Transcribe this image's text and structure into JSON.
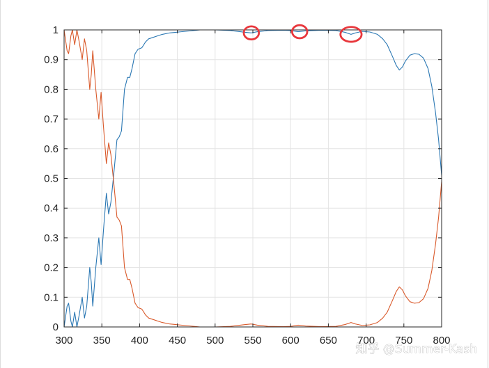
{
  "watermark": "知乎 @Summer-Kash",
  "colors": {
    "series_transmission": "#2a77b3",
    "series_reflection": "#d9592a",
    "marker": "#e8373c",
    "grid": "#e3e3e3",
    "axis": "#262626"
  },
  "chart_data": {
    "type": "line",
    "title": "",
    "xlabel": "",
    "ylabel": "",
    "xlim": [
      300,
      800
    ],
    "ylim": [
      0,
      1
    ],
    "grid": true,
    "legend": "none",
    "x_ticks": [
      "300",
      "350",
      "400",
      "450",
      "500",
      "550",
      "600",
      "650",
      "700",
      "750",
      "800"
    ],
    "y_ticks": [
      "0",
      "0.1",
      "0.2",
      "0.3",
      "0.4",
      "0.5",
      "0.6",
      "0.7",
      "0.8",
      "0.9",
      "1"
    ],
    "series": [
      {
        "color": "#2a77b3",
        "points": [
          [
            300,
            0.0
          ],
          [
            304,
            0.07
          ],
          [
            306,
            0.08
          ],
          [
            309,
            0.02
          ],
          [
            311,
            0.0
          ],
          [
            314,
            0.05
          ],
          [
            317,
            0.0
          ],
          [
            320,
            0.04
          ],
          [
            324,
            0.1
          ],
          [
            327,
            0.03
          ],
          [
            330,
            0.07
          ],
          [
            334,
            0.2
          ],
          [
            336,
            0.15
          ],
          [
            338,
            0.07
          ],
          [
            342,
            0.2
          ],
          [
            346,
            0.3
          ],
          [
            349,
            0.21
          ],
          [
            352,
            0.32
          ],
          [
            356,
            0.45
          ],
          [
            359,
            0.38
          ],
          [
            362,
            0.42
          ],
          [
            366,
            0.52
          ],
          [
            370,
            0.63
          ],
          [
            373,
            0.64
          ],
          [
            376,
            0.66
          ],
          [
            380,
            0.8
          ],
          [
            384,
            0.84
          ],
          [
            387,
            0.84
          ],
          [
            390,
            0.87
          ],
          [
            394,
            0.92
          ],
          [
            398,
            0.935
          ],
          [
            403,
            0.94
          ],
          [
            408,
            0.96
          ],
          [
            412,
            0.97
          ],
          [
            418,
            0.975
          ],
          [
            424,
            0.98
          ],
          [
            430,
            0.985
          ],
          [
            440,
            0.99
          ],
          [
            460,
            0.995
          ],
          [
            480,
            1.0
          ],
          [
            500,
            1.0
          ],
          [
            520,
            0.998
          ],
          [
            540,
            0.992
          ],
          [
            548,
            0.99
          ],
          [
            556,
            0.994
          ],
          [
            570,
            0.998
          ],
          [
            590,
            0.999
          ],
          [
            600,
            0.998
          ],
          [
            610,
            0.994
          ],
          [
            620,
            0.997
          ],
          [
            640,
            0.999
          ],
          [
            660,
            0.998
          ],
          [
            672,
            0.992
          ],
          [
            680,
            0.985
          ],
          [
            686,
            0.99
          ],
          [
            695,
            0.995
          ],
          [
            705,
            0.993
          ],
          [
            715,
            0.985
          ],
          [
            722,
            0.97
          ],
          [
            728,
            0.95
          ],
          [
            735,
            0.91
          ],
          [
            740,
            0.88
          ],
          [
            744,
            0.865
          ],
          [
            748,
            0.875
          ],
          [
            752,
            0.895
          ],
          [
            758,
            0.915
          ],
          [
            764,
            0.92
          ],
          [
            770,
            0.918
          ],
          [
            776,
            0.905
          ],
          [
            782,
            0.87
          ],
          [
            787,
            0.81
          ],
          [
            792,
            0.72
          ],
          [
            796,
            0.63
          ],
          [
            800,
            0.51
          ]
        ]
      },
      {
        "color": "#d9592a",
        "points": [
          [
            300,
            1.0
          ],
          [
            304,
            0.93
          ],
          [
            306,
            0.92
          ],
          [
            309,
            0.98
          ],
          [
            311,
            1.0
          ],
          [
            314,
            0.95
          ],
          [
            317,
            1.0
          ],
          [
            320,
            0.96
          ],
          [
            324,
            0.9
          ],
          [
            327,
            0.97
          ],
          [
            330,
            0.93
          ],
          [
            334,
            0.8
          ],
          [
            336,
            0.85
          ],
          [
            338,
            0.93
          ],
          [
            342,
            0.8
          ],
          [
            346,
            0.7
          ],
          [
            349,
            0.79
          ],
          [
            352,
            0.68
          ],
          [
            356,
            0.55
          ],
          [
            359,
            0.62
          ],
          [
            362,
            0.58
          ],
          [
            366,
            0.48
          ],
          [
            370,
            0.37
          ],
          [
            373,
            0.36
          ],
          [
            376,
            0.34
          ],
          [
            380,
            0.2
          ],
          [
            384,
            0.16
          ],
          [
            387,
            0.16
          ],
          [
            390,
            0.13
          ],
          [
            394,
            0.08
          ],
          [
            398,
            0.065
          ],
          [
            403,
            0.06
          ],
          [
            408,
            0.04
          ],
          [
            412,
            0.03
          ],
          [
            418,
            0.025
          ],
          [
            424,
            0.02
          ],
          [
            430,
            0.015
          ],
          [
            440,
            0.01
          ],
          [
            460,
            0.005
          ],
          [
            480,
            0.0
          ],
          [
            500,
            0.0
          ],
          [
            520,
            0.002
          ],
          [
            540,
            0.008
          ],
          [
            548,
            0.01
          ],
          [
            556,
            0.006
          ],
          [
            570,
            0.002
          ],
          [
            590,
            0.001
          ],
          [
            600,
            0.002
          ],
          [
            610,
            0.006
          ],
          [
            620,
            0.003
          ],
          [
            640,
            0.001
          ],
          [
            660,
            0.002
          ],
          [
            672,
            0.008
          ],
          [
            680,
            0.015
          ],
          [
            686,
            0.01
          ],
          [
            695,
            0.005
          ],
          [
            705,
            0.007
          ],
          [
            715,
            0.015
          ],
          [
            722,
            0.03
          ],
          [
            728,
            0.05
          ],
          [
            735,
            0.09
          ],
          [
            740,
            0.12
          ],
          [
            744,
            0.135
          ],
          [
            748,
            0.125
          ],
          [
            752,
            0.105
          ],
          [
            758,
            0.085
          ],
          [
            764,
            0.08
          ],
          [
            770,
            0.082
          ],
          [
            776,
            0.095
          ],
          [
            782,
            0.13
          ],
          [
            787,
            0.19
          ],
          [
            792,
            0.28
          ],
          [
            796,
            0.37
          ],
          [
            800,
            0.49
          ]
        ]
      }
    ],
    "annotations": [
      {
        "shape": "ellipse",
        "x": 548,
        "y": 0.99,
        "rx": 10,
        "ry": 0.022
      },
      {
        "shape": "ellipse",
        "x": 612,
        "y": 0.994,
        "rx": 10,
        "ry": 0.022
      },
      {
        "shape": "ellipse",
        "x": 680,
        "y": 0.985,
        "rx": 14,
        "ry": 0.025
      }
    ]
  }
}
